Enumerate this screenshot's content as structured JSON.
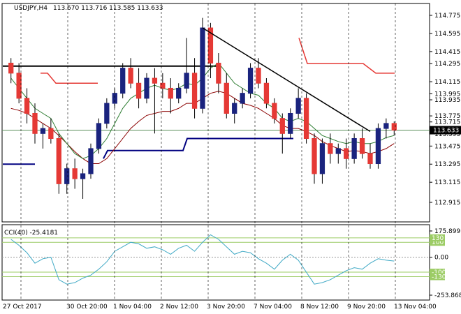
{
  "header": {
    "symbol": "USDJPY,H4",
    "ohlc": "113.670 113.716 113.585 113.633"
  },
  "indicator_header": {
    "label": "CCI(40) -25.4181"
  },
  "colors": {
    "bull": "#1a237e",
    "bear": "#e53935",
    "wick": "#000000",
    "ma_fast": "#2e7d32",
    "ma_slow": "#8b0000",
    "cci": "#3fa9c5",
    "cci_level": "#9ccc65",
    "current_price_line": "#5a8f5a",
    "trendline": "#000000",
    "resistance": "#000000",
    "support": "#000080",
    "stop": "#e53935",
    "price_tag_bg": "#000000",
    "price_tag_text": "#ffffff"
  },
  "chart_data": [
    {
      "type": "candlestick",
      "title": "USDJPY,H4",
      "x": [
        "27 Oct 2017",
        "30 Oct 20:00",
        "1 Nov 04:00",
        "2 Nov 12:00",
        "3 Nov 20:00",
        "7 Nov 04:00",
        "8 Nov 12:00",
        "9 Nov 20:00",
        "13 Nov 04:00"
      ],
      "ylim": [
        112.915,
        114.775
      ],
      "y_ticks": [
        "114.775",
        "114.595",
        "114.415",
        "114.295",
        "114.115",
        "113.995",
        "113.935",
        "113.775",
        "113.715",
        "113.595",
        "113.475",
        "113.295",
        "113.115",
        "112.915"
      ],
      "y_tick_labels": [
        "114.775",
        "114.595",
        "114.415",
        "114.295",
        "114.115",
        "113.995",
        "113.935",
        "113.775",
        "113.715",
        "113.595",
        "113.475",
        "113.295",
        "113.115",
        "112.915"
      ],
      "current_price": 113.633,
      "current_price_label": "113.633",
      "candles": [
        {
          "o": 114.3,
          "h": 114.35,
          "l": 114.1,
          "c": 114.2
        },
        {
          "o": 114.2,
          "h": 114.3,
          "l": 113.9,
          "c": 113.95
        },
        {
          "o": 113.95,
          "h": 114.05,
          "l": 113.7,
          "c": 113.8
        },
        {
          "o": 113.8,
          "h": 113.9,
          "l": 113.5,
          "c": 113.6
        },
        {
          "o": 113.6,
          "h": 113.7,
          "l": 113.45,
          "c": 113.65
        },
        {
          "o": 113.65,
          "h": 113.75,
          "l": 113.5,
          "c": 113.55
        },
        {
          "o": 113.55,
          "h": 113.6,
          "l": 113.0,
          "c": 113.1
        },
        {
          "o": 113.1,
          "h": 113.3,
          "l": 113.0,
          "c": 113.25
        },
        {
          "o": 113.25,
          "h": 113.35,
          "l": 113.05,
          "c": 113.15
        },
        {
          "o": 113.15,
          "h": 113.25,
          "l": 112.95,
          "c": 113.2
        },
        {
          "o": 113.2,
          "h": 113.5,
          "l": 113.15,
          "c": 113.45
        },
        {
          "o": 113.45,
          "h": 113.75,
          "l": 113.4,
          "c": 113.7
        },
        {
          "o": 113.7,
          "h": 113.95,
          "l": 113.65,
          "c": 113.9
        },
        {
          "o": 113.9,
          "h": 114.05,
          "l": 113.85,
          "c": 114.0
        },
        {
          "o": 114.0,
          "h": 114.3,
          "l": 113.95,
          "c": 114.25
        },
        {
          "o": 114.25,
          "h": 114.35,
          "l": 114.05,
          "c": 114.1
        },
        {
          "o": 114.1,
          "h": 114.25,
          "l": 113.85,
          "c": 113.95
        },
        {
          "o": 113.95,
          "h": 114.2,
          "l": 113.9,
          "c": 114.15
        },
        {
          "o": 114.15,
          "h": 114.25,
          "l": 113.6,
          "c": 114.1
        },
        {
          "o": 114.1,
          "h": 114.2,
          "l": 113.95,
          "c": 114.05
        },
        {
          "o": 114.05,
          "h": 114.15,
          "l": 113.8,
          "c": 113.95
        },
        {
          "o": 113.95,
          "h": 114.1,
          "l": 113.9,
          "c": 114.05
        },
        {
          "o": 114.05,
          "h": 114.55,
          "l": 114.0,
          "c": 114.2
        },
        {
          "o": 114.2,
          "h": 114.35,
          "l": 113.75,
          "c": 113.85
        },
        {
          "o": 113.85,
          "h": 114.75,
          "l": 113.8,
          "c": 114.65
        },
        {
          "o": 114.65,
          "h": 114.7,
          "l": 114.15,
          "c": 114.3
        },
        {
          "o": 114.3,
          "h": 114.4,
          "l": 114.0,
          "c": 114.1
        },
        {
          "o": 114.1,
          "h": 114.2,
          "l": 113.75,
          "c": 113.8
        },
        {
          "o": 113.8,
          "h": 113.95,
          "l": 113.7,
          "c": 113.9
        },
        {
          "o": 113.9,
          "h": 114.05,
          "l": 113.85,
          "c": 114.0
        },
        {
          "o": 114.0,
          "h": 114.3,
          "l": 113.95,
          "c": 114.25
        },
        {
          "o": 114.25,
          "h": 114.35,
          "l": 114.05,
          "c": 114.1
        },
        {
          "o": 114.1,
          "h": 114.15,
          "l": 113.85,
          "c": 113.9
        },
        {
          "o": 113.9,
          "h": 113.95,
          "l": 113.7,
          "c": 113.75
        },
        {
          "o": 113.75,
          "h": 113.8,
          "l": 113.4,
          "c": 113.6
        },
        {
          "o": 113.6,
          "h": 113.85,
          "l": 113.55,
          "c": 113.8
        },
        {
          "o": 113.8,
          "h": 114.05,
          "l": 113.75,
          "c": 113.95
        },
        {
          "o": 113.95,
          "h": 114.0,
          "l": 113.5,
          "c": 113.55
        },
        {
          "o": 113.55,
          "h": 113.6,
          "l": 113.1,
          "c": 113.2
        },
        {
          "o": 113.2,
          "h": 113.55,
          "l": 113.1,
          "c": 113.5
        },
        {
          "o": 113.5,
          "h": 113.6,
          "l": 113.3,
          "c": 113.4
        },
        {
          "o": 113.4,
          "h": 113.5,
          "l": 113.3,
          "c": 113.45
        },
        {
          "o": 113.45,
          "h": 113.55,
          "l": 113.25,
          "c": 113.35
        },
        {
          "o": 113.35,
          "h": 113.6,
          "l": 113.3,
          "c": 113.55
        },
        {
          "o": 113.55,
          "h": 113.65,
          "l": 113.35,
          "c": 113.4
        },
        {
          "o": 113.4,
          "h": 113.5,
          "l": 113.25,
          "c": 113.3
        },
        {
          "o": 113.3,
          "h": 113.7,
          "l": 113.25,
          "c": 113.65
        },
        {
          "o": 113.65,
          "h": 113.75,
          "l": 113.55,
          "c": 113.7
        },
        {
          "o": 113.7,
          "h": 113.72,
          "l": 113.58,
          "c": 113.633
        }
      ],
      "ma_fast": [
        114.15,
        114.05,
        113.95,
        113.85,
        113.8,
        113.75,
        113.6,
        113.5,
        113.4,
        113.35,
        113.38,
        113.45,
        113.55,
        113.7,
        113.85,
        113.95,
        114.0,
        114.05,
        114.08,
        114.05,
        114.03,
        114.05,
        114.1,
        114.08,
        114.15,
        114.25,
        114.3,
        114.2,
        114.1,
        114.05,
        114.0,
        113.98,
        113.9,
        113.85,
        113.75,
        113.72,
        113.75,
        113.72,
        113.65,
        113.58,
        113.55,
        113.52,
        113.5,
        113.52,
        113.5,
        113.5,
        113.52,
        113.56,
        113.58
      ],
      "ma_slow": [
        113.85,
        113.83,
        113.8,
        113.75,
        113.7,
        113.65,
        113.58,
        113.5,
        113.42,
        113.35,
        113.3,
        113.3,
        113.35,
        113.45,
        113.55,
        113.65,
        113.72,
        113.78,
        113.8,
        113.82,
        113.82,
        113.85,
        113.9,
        113.9,
        113.95,
        114.0,
        114.02,
        114.0,
        113.95,
        113.9,
        113.88,
        113.85,
        113.8,
        113.75,
        113.68,
        113.65,
        113.65,
        113.62,
        113.58,
        113.52,
        113.48,
        113.45,
        113.42,
        113.43,
        113.42,
        113.4,
        113.42,
        113.45,
        113.5
      ],
      "annotations": {
        "resistance_level": 114.27,
        "support_segments": [
          {
            "from": 3,
            "to": 8,
            "value": 113.35
          },
          {
            "from": 15,
            "to": 27,
            "value": 113.43
          },
          {
            "from": 27,
            "to": 42,
            "value": 113.55
          }
        ],
        "stop_segments": [
          {
            "from": 10,
            "to": 14,
            "value": 114.1
          },
          {
            "from": 40,
            "to": 48,
            "value": 114.18
          }
        ],
        "trendline": {
          "from_index": 24,
          "from_value": 114.65,
          "to_index": 45,
          "to_value": 113.62
        }
      }
    },
    {
      "type": "line",
      "title": "CCI(40) -25.4181",
      "ylim": [
        -253.8685,
        175.899
      ],
      "y_ticks": [
        175.899,
        0.0,
        -253.8685
      ],
      "y_tick_labels": [
        "175.899",
        "0.00",
        "-253.8685"
      ],
      "levels": [
        100,
        130,
        -100,
        -130
      ],
      "level_labels": [
        "100",
        "130",
        "-100",
        "-130"
      ],
      "values": [
        120,
        80,
        30,
        -40,
        -10,
        0,
        -150,
        -180,
        -170,
        -140,
        -120,
        -80,
        -30,
        40,
        70,
        100,
        90,
        60,
        70,
        50,
        20,
        60,
        80,
        40,
        100,
        150,
        120,
        70,
        20,
        40,
        30,
        -10,
        -40,
        -80,
        -20,
        20,
        -20,
        -100,
        -180,
        -170,
        -150,
        -120,
        -90,
        -70,
        -80,
        -40,
        -10,
        -20,
        -25.4181
      ]
    }
  ]
}
